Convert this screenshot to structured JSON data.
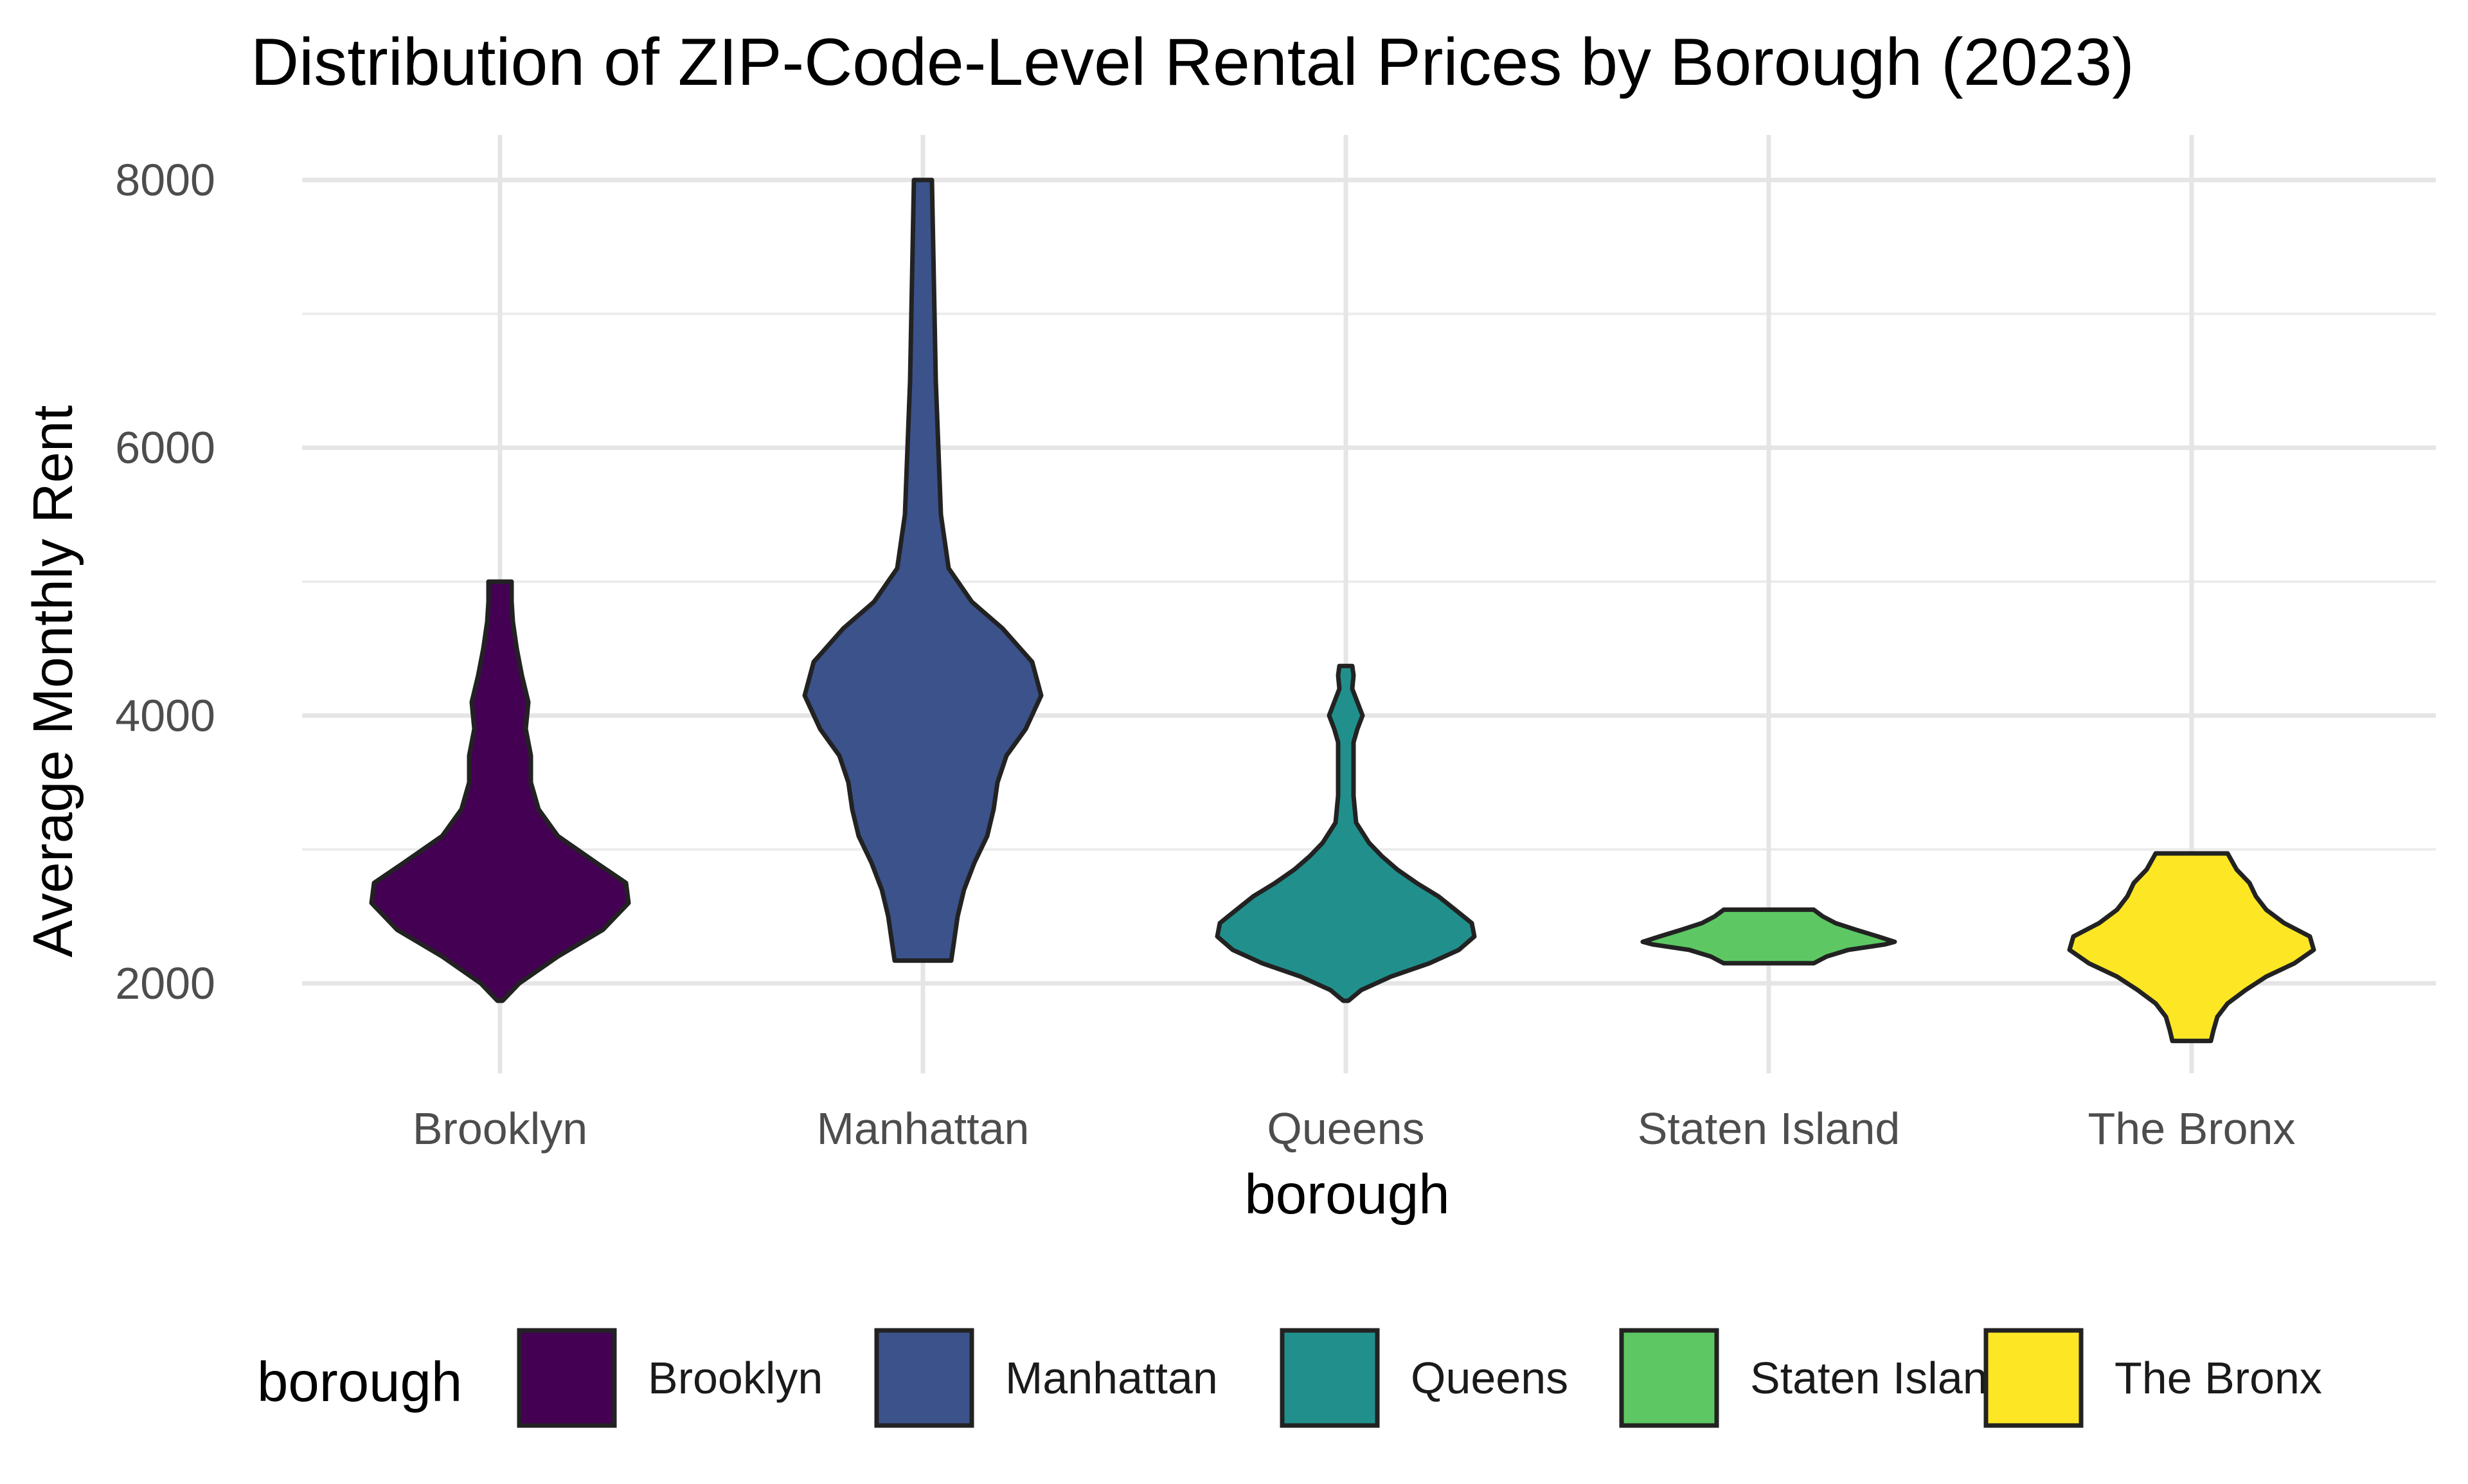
{
  "chart_data": {
    "type": "violin",
    "title": "Distribution of ZIP-Code-Level Rental Prices by Borough (2023)",
    "xlabel": "borough",
    "ylabel": "Average Monthly Rent",
    "categories": [
      "Brooklyn",
      "Manhattan",
      "Queens",
      "Staten Island",
      "The Bronx"
    ],
    "y_ticks": [
      2000,
      4000,
      6000,
      8000
    ],
    "y_ticks_text": [
      "2000",
      "4000",
      "6000",
      "8000"
    ],
    "ylim": [
      1300,
      8350
    ],
    "grid": true,
    "legend": {
      "title": "borough",
      "placement": "bottom",
      "entries": [
        "Brooklyn",
        "Manhattan",
        "Queens",
        "Staten Island",
        "The Bronx"
      ]
    },
    "colors": {
      "Brooklyn": "#440154",
      "Manhattan": "#3B528B",
      "Queens": "#21908C",
      "Staten Island": "#5DC863",
      "The Bronx": "#FDE725"
    },
    "series": [
      {
        "name": "Brooklyn",
        "min": 1870,
        "max": 5000,
        "density": [
          [
            1870,
            0.02
          ],
          [
            2000,
            0.15
          ],
          [
            2200,
            0.45
          ],
          [
            2400,
            0.8
          ],
          [
            2600,
            1.0
          ],
          [
            2750,
            0.98
          ],
          [
            2900,
            0.75
          ],
          [
            3100,
            0.45
          ],
          [
            3300,
            0.3
          ],
          [
            3500,
            0.24
          ],
          [
            3700,
            0.24
          ],
          [
            3900,
            0.2
          ],
          [
            4100,
            0.22
          ],
          [
            4300,
            0.17
          ],
          [
            4500,
            0.13
          ],
          [
            4700,
            0.1
          ],
          [
            4850,
            0.09
          ],
          [
            5000,
            0.09
          ]
        ]
      },
      {
        "name": "Manhattan",
        "min": 2170,
        "max": 8000,
        "density": [
          [
            2170,
            0.22
          ],
          [
            2300,
            0.24
          ],
          [
            2500,
            0.27
          ],
          [
            2700,
            0.32
          ],
          [
            2900,
            0.4
          ],
          [
            3100,
            0.5
          ],
          [
            3300,
            0.55
          ],
          [
            3500,
            0.58
          ],
          [
            3700,
            0.65
          ],
          [
            3900,
            0.8
          ],
          [
            4150,
            0.92
          ],
          [
            4400,
            0.85
          ],
          [
            4650,
            0.62
          ],
          [
            4850,
            0.38
          ],
          [
            5100,
            0.2
          ],
          [
            5500,
            0.14
          ],
          [
            6000,
            0.12
          ],
          [
            6500,
            0.1
          ],
          [
            7000,
            0.09
          ],
          [
            7500,
            0.08
          ],
          [
            8000,
            0.07
          ]
        ]
      },
      {
        "name": "Queens",
        "min": 1870,
        "max": 4370,
        "density": [
          [
            1870,
            0.02
          ],
          [
            1950,
            0.12
          ],
          [
            2050,
            0.35
          ],
          [
            2150,
            0.65
          ],
          [
            2250,
            0.88
          ],
          [
            2350,
            1.0
          ],
          [
            2450,
            0.98
          ],
          [
            2550,
            0.85
          ],
          [
            2650,
            0.72
          ],
          [
            2750,
            0.55
          ],
          [
            2850,
            0.4
          ],
          [
            2950,
            0.28
          ],
          [
            3050,
            0.18
          ],
          [
            3200,
            0.08
          ],
          [
            3400,
            0.06
          ],
          [
            3600,
            0.06
          ],
          [
            3800,
            0.06
          ],
          [
            3900,
            0.09
          ],
          [
            4000,
            0.13
          ],
          [
            4100,
            0.09
          ],
          [
            4200,
            0.05
          ],
          [
            4300,
            0.06
          ],
          [
            4370,
            0.05
          ]
        ]
      },
      {
        "name": "Staten Island",
        "min": 2150,
        "max": 2550,
        "density": [
          [
            2150,
            0.35
          ],
          [
            2200,
            0.45
          ],
          [
            2250,
            0.62
          ],
          [
            2290,
            0.9
          ],
          [
            2310,
            0.98
          ],
          [
            2350,
            0.85
          ],
          [
            2400,
            0.68
          ],
          [
            2450,
            0.52
          ],
          [
            2500,
            0.42
          ],
          [
            2550,
            0.35
          ]
        ]
      },
      {
        "name": "The Bronx",
        "min": 1570,
        "max": 2970,
        "density": [
          [
            1570,
            0.15
          ],
          [
            1650,
            0.17
          ],
          [
            1750,
            0.2
          ],
          [
            1850,
            0.28
          ],
          [
            1950,
            0.42
          ],
          [
            2050,
            0.58
          ],
          [
            2150,
            0.8
          ],
          [
            2250,
            0.95
          ],
          [
            2350,
            0.92
          ],
          [
            2450,
            0.72
          ],
          [
            2550,
            0.58
          ],
          [
            2650,
            0.5
          ],
          [
            2750,
            0.45
          ],
          [
            2850,
            0.35
          ],
          [
            2970,
            0.28
          ]
        ]
      }
    ]
  }
}
